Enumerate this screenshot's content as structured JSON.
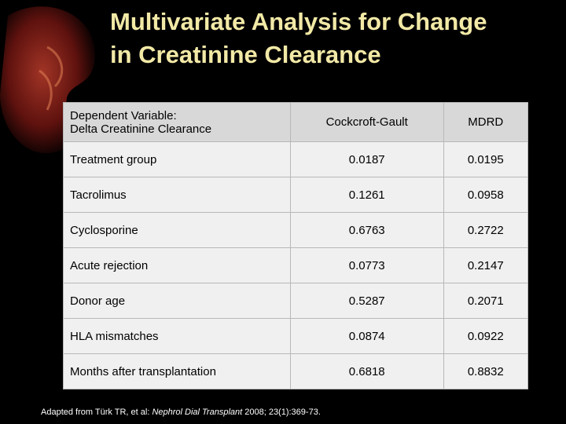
{
  "header": {
    "title_lines": [
      "Multivariate Analysis for Change",
      "in Creatinine Clearance"
    ]
  },
  "table": {
    "columns": [
      [
        "Dependent Variable:",
        "Delta Creatinine Clearance"
      ],
      "Cockcroft-Gault",
      "MDRD"
    ],
    "rows": [
      [
        "Treatment group",
        "0.0187",
        "0.0195"
      ],
      [
        "Tacrolimus",
        "0.1261",
        "0.0958"
      ],
      [
        "Cyclosporine",
        "0.6763",
        "0.2722"
      ],
      [
        "Acute rejection",
        "0.0773",
        "0.2147"
      ],
      [
        "Donor age",
        "0.5287",
        "0.2071"
      ],
      [
        "HLA mismatches",
        "0.0874",
        "0.0922"
      ],
      [
        "Months after transplantation",
        "0.6818",
        "0.8832"
      ]
    ]
  },
  "footer": {
    "source": [
      "Adapted from Türk TR, et al: ",
      "Nephrol Dial Transplant",
      " 2008; 23(1):369-73."
    ]
  }
}
